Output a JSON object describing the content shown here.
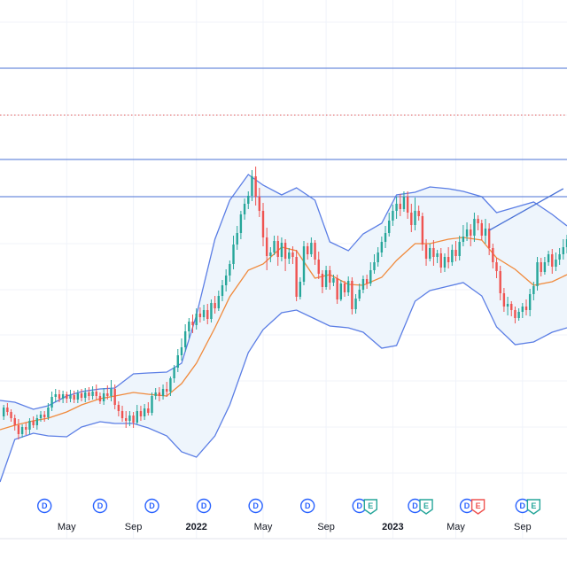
{
  "colors": {
    "up": "#26a69a",
    "down": "#ef5350",
    "band_line": "#5b7ee5",
    "band_fill": "#eef5fc",
    "basis": "#f08a3c",
    "hline": "#4a72d6",
    "hline_dotted": "#e25a5a",
    "trendline": "#4a72d6",
    "dividend": "#2962ff",
    "earnings": "#26a69a",
    "earnings_red": "#ef5350"
  },
  "chart_data": {
    "type": "candlestick",
    "title": "",
    "xlabel": "",
    "ylabel": "",
    "grid": true,
    "ylim": [
      0,
      640
    ],
    "x_ticks": [
      {
        "label": "May",
        "x": 18,
        "bold": false
      },
      {
        "label": "Sep",
        "x": 36,
        "bold": false
      },
      {
        "label": "2022",
        "x": 53,
        "bold": true
      },
      {
        "label": "May",
        "x": 71,
        "bold": false
      },
      {
        "label": "Sep",
        "x": 88,
        "bold": false
      },
      {
        "label": "2023",
        "x": 106,
        "bold": true
      },
      {
        "label": "May",
        "x": 123,
        "bold": false
      },
      {
        "label": "Sep",
        "x": 141,
        "bold": false
      }
    ],
    "horizontal_levels": [
      {
        "value": 563,
        "style": "solid"
      },
      {
        "value": 510,
        "style": "dotted"
      },
      {
        "value": 460,
        "style": "solid"
      },
      {
        "value": 418,
        "style": "solid"
      }
    ],
    "events": [
      {
        "type": "D",
        "x": 12
      },
      {
        "type": "D",
        "x": 27
      },
      {
        "type": "D",
        "x": 41
      },
      {
        "type": "D",
        "x": 55
      },
      {
        "type": "D",
        "x": 69
      },
      {
        "type": "D",
        "x": 83
      },
      {
        "type": "D",
        "x": 97
      },
      {
        "type": "E",
        "x": 100
      },
      {
        "type": "D",
        "x": 112
      },
      {
        "type": "E",
        "x": 115
      },
      {
        "type": "D",
        "x": 126
      },
      {
        "type": "E",
        "x": 129,
        "tone": "red"
      },
      {
        "type": "D",
        "x": 141
      },
      {
        "type": "E",
        "x": 144
      }
    ],
    "trendline": {
      "x": [
        132,
        152
      ],
      "y": [
        380,
        427
      ]
    },
    "bollinger": {
      "upper": [
        [
          0,
          188
        ],
        [
          4,
          186
        ],
        [
          9,
          178
        ],
        [
          13,
          182
        ],
        [
          18,
          193
        ],
        [
          22,
          198
        ],
        [
          27,
          201
        ],
        [
          31,
          202
        ],
        [
          36,
          218
        ],
        [
          40,
          219
        ],
        [
          45,
          220
        ],
        [
          49,
          230
        ],
        [
          53,
          284
        ],
        [
          58,
          370
        ],
        [
          62,
          414
        ],
        [
          67,
          443
        ],
        [
          71,
          431
        ],
        [
          76,
          420
        ],
        [
          80,
          428
        ],
        [
          85,
          414
        ],
        [
          89,
          367
        ],
        [
          94,
          357
        ],
        [
          98,
          376
        ],
        [
          103,
          388
        ],
        [
          107,
          420
        ],
        [
          112,
          423
        ],
        [
          116,
          429
        ],
        [
          121,
          427
        ],
        [
          125,
          424
        ],
        [
          130,
          418
        ],
        [
          134,
          400
        ],
        [
          139,
          406
        ],
        [
          144,
          412
        ],
        [
          149,
          398
        ],
        [
          153,
          385
        ]
      ],
      "lower": [
        [
          0,
          96
        ],
        [
          4,
          144
        ],
        [
          9,
          151
        ],
        [
          13,
          148
        ],
        [
          18,
          147
        ],
        [
          22,
          158
        ],
        [
          27,
          164
        ],
        [
          31,
          162
        ],
        [
          36,
          162
        ],
        [
          40,
          157
        ],
        [
          45,
          148
        ],
        [
          49,
          130
        ],
        [
          53,
          124
        ],
        [
          58,
          148
        ],
        [
          62,
          183
        ],
        [
          67,
          242
        ],
        [
          71,
          268
        ],
        [
          76,
          287
        ],
        [
          80,
          290
        ],
        [
          85,
          280
        ],
        [
          89,
          272
        ],
        [
          94,
          270
        ],
        [
          98,
          265
        ],
        [
          103,
          247
        ],
        [
          107,
          250
        ],
        [
          112,
          300
        ],
        [
          116,
          312
        ],
        [
          121,
          317
        ],
        [
          125,
          321
        ],
        [
          130,
          306
        ],
        [
          134,
          271
        ],
        [
          139,
          251
        ],
        [
          144,
          254
        ],
        [
          149,
          265
        ],
        [
          153,
          270
        ]
      ],
      "basis": [
        [
          0,
          155
        ],
        [
          4,
          160
        ],
        [
          9,
          165
        ],
        [
          13,
          168
        ],
        [
          18,
          175
        ],
        [
          22,
          183
        ],
        [
          27,
          190
        ],
        [
          31,
          193
        ],
        [
          36,
          197
        ],
        [
          40,
          195
        ],
        [
          45,
          193
        ],
        [
          49,
          207
        ],
        [
          53,
          230
        ],
        [
          58,
          270
        ],
        [
          62,
          305
        ],
        [
          67,
          335
        ],
        [
          71,
          342
        ],
        [
          76,
          361
        ],
        [
          80,
          357
        ],
        [
          85,
          326
        ],
        [
          89,
          330
        ],
        [
          94,
          319
        ],
        [
          98,
          318
        ],
        [
          103,
          327
        ],
        [
          107,
          346
        ],
        [
          112,
          365
        ],
        [
          116,
          365
        ],
        [
          121,
          370
        ],
        [
          125,
          372
        ],
        [
          130,
          369
        ],
        [
          134,
          349
        ],
        [
          139,
          336
        ],
        [
          144,
          318
        ],
        [
          149,
          322
        ],
        [
          153,
          330
        ]
      ]
    },
    "candles": [
      [
        1,
        170,
        180,
        166,
        183
      ],
      [
        2,
        180,
        175,
        171,
        185
      ],
      [
        3,
        175,
        168,
        164,
        178
      ],
      [
        4,
        168,
        160,
        154,
        172
      ],
      [
        5,
        160,
        150,
        144,
        167
      ],
      [
        6,
        150,
        158,
        146,
        161
      ],
      [
        7,
        158,
        155,
        149,
        163
      ],
      [
        8,
        155,
        165,
        150,
        168
      ],
      [
        9,
        165,
        160,
        157,
        170
      ],
      [
        10,
        160,
        168,
        155,
        172
      ],
      [
        11,
        168,
        172,
        164,
        176
      ],
      [
        12,
        172,
        169,
        164,
        176
      ],
      [
        13,
        169,
        180,
        166,
        185
      ],
      [
        14,
        180,
        192,
        176,
        198
      ],
      [
        15,
        192,
        195,
        186,
        201
      ],
      [
        16,
        195,
        190,
        186,
        200
      ],
      [
        17,
        190,
        195,
        185,
        199
      ],
      [
        18,
        195,
        190,
        185,
        198
      ],
      [
        19,
        190,
        194,
        186,
        200
      ],
      [
        20,
        194,
        189,
        185,
        199
      ],
      [
        21,
        189,
        196,
        185,
        200
      ],
      [
        22,
        196,
        191,
        187,
        201
      ],
      [
        23,
        191,
        197,
        186,
        202
      ],
      [
        24,
        197,
        193,
        188,
        203
      ],
      [
        25,
        193,
        198,
        189,
        204
      ],
      [
        26,
        198,
        193,
        189,
        206
      ],
      [
        27,
        193,
        187,
        184,
        197
      ],
      [
        28,
        187,
        196,
        183,
        202
      ],
      [
        29,
        196,
        193,
        189,
        205
      ],
      [
        30,
        193,
        201,
        187,
        211
      ],
      [
        31,
        201,
        183,
        178,
        206
      ],
      [
        32,
        183,
        176,
        170,
        187
      ],
      [
        33,
        176,
        168,
        164,
        182
      ],
      [
        34,
        168,
        165,
        157,
        176
      ],
      [
        35,
        165,
        171,
        159,
        176
      ],
      [
        36,
        171,
        163,
        157,
        175
      ],
      [
        37,
        163,
        176,
        161,
        183
      ],
      [
        38,
        176,
        170,
        165,
        182
      ],
      [
        39,
        170,
        179,
        166,
        184
      ],
      [
        40,
        179,
        174,
        171,
        186
      ],
      [
        41,
        174,
        193,
        171,
        197
      ],
      [
        42,
        193,
        197,
        189,
        202
      ],
      [
        43,
        197,
        193,
        187,
        203
      ],
      [
        44,
        193,
        201,
        189,
        206
      ],
      [
        45,
        201,
        198,
        192,
        209
      ],
      [
        46,
        198,
        213,
        193,
        215
      ],
      [
        47,
        213,
        225,
        208,
        228
      ],
      [
        48,
        225,
        239,
        220,
        246
      ],
      [
        49,
        239,
        248,
        233,
        258
      ],
      [
        50,
        248,
        266,
        243,
        274
      ],
      [
        51,
        266,
        277,
        258,
        281
      ],
      [
        52,
        277,
        273,
        264,
        285
      ],
      [
        53,
        273,
        286,
        268,
        292
      ],
      [
        54,
        286,
        282,
        276,
        293
      ],
      [
        55,
        282,
        290,
        278,
        296
      ],
      [
        56,
        290,
        280,
        274,
        297
      ],
      [
        57,
        280,
        298,
        276,
        302
      ],
      [
        58,
        298,
        292,
        286,
        306
      ],
      [
        59,
        292,
        306,
        289,
        312
      ],
      [
        60,
        306,
        318,
        300,
        324
      ],
      [
        61,
        318,
        329,
        311,
        336
      ],
      [
        62,
        329,
        342,
        322,
        346
      ],
      [
        63,
        342,
        364,
        336,
        374
      ],
      [
        64,
        364,
        377,
        358,
        385
      ],
      [
        65,
        377,
        398,
        370,
        402
      ],
      [
        66,
        398,
        410,
        392,
        416
      ],
      [
        67,
        410,
        419,
        404,
        424
      ],
      [
        68,
        419,
        441,
        413,
        448
      ],
      [
        69,
        441,
        418,
        408,
        452
      ],
      [
        70,
        418,
        402,
        395,
        428
      ],
      [
        71,
        402,
        372,
        362,
        411
      ],
      [
        72,
        372,
        351,
        335,
        383
      ],
      [
        73,
        351,
        355,
        344,
        361
      ],
      [
        74,
        355,
        368,
        352,
        374
      ],
      [
        75,
        368,
        350,
        340,
        374
      ],
      [
        76,
        350,
        366,
        345,
        372
      ],
      [
        77,
        366,
        348,
        334,
        370
      ],
      [
        78,
        348,
        355,
        342,
        360
      ],
      [
        79,
        355,
        350,
        342,
        362
      ],
      [
        80,
        350,
        305,
        300,
        358
      ],
      [
        81,
        305,
        322,
        302,
        327
      ],
      [
        82,
        322,
        362,
        318,
        368
      ],
      [
        83,
        362,
        353,
        347,
        366
      ],
      [
        84,
        353,
        366,
        350,
        372
      ],
      [
        85,
        366,
        347,
        341,
        369
      ],
      [
        86,
        347,
        331,
        325,
        356
      ],
      [
        87,
        331,
        316,
        309,
        335
      ],
      [
        88,
        316,
        335,
        313,
        340
      ],
      [
        89,
        335,
        321,
        313,
        340
      ],
      [
        90,
        321,
        326,
        317,
        330
      ],
      [
        91,
        326,
        302,
        297,
        330
      ],
      [
        92,
        302,
        320,
        300,
        324
      ],
      [
        93,
        320,
        310,
        305,
        323
      ],
      [
        94,
        310,
        323,
        306,
        328
      ],
      [
        95,
        323,
        291,
        285,
        327
      ],
      [
        96,
        291,
        303,
        286,
        308
      ],
      [
        97,
        303,
        313,
        300,
        320
      ],
      [
        98,
        313,
        325,
        309,
        329
      ],
      [
        99,
        325,
        320,
        314,
        330
      ],
      [
        100,
        320,
        335,
        317,
        344
      ],
      [
        101,
        335,
        344,
        331,
        353
      ],
      [
        102,
        344,
        355,
        339,
        361
      ],
      [
        103,
        355,
        367,
        350,
        373
      ],
      [
        104,
        367,
        377,
        360,
        385
      ],
      [
        105,
        377,
        391,
        373,
        400
      ],
      [
        106,
        391,
        402,
        385,
        409
      ],
      [
        107,
        402,
        410,
        393,
        418
      ],
      [
        108,
        410,
        404,
        396,
        421
      ],
      [
        109,
        404,
        418,
        401,
        424
      ],
      [
        110,
        418,
        400,
        393,
        424
      ],
      [
        111,
        400,
        386,
        378,
        410
      ],
      [
        112,
        386,
        402,
        380,
        417
      ],
      [
        113,
        402,
        396,
        391,
        408
      ],
      [
        114,
        396,
        364,
        357,
        400
      ],
      [
        115,
        364,
        348,
        340,
        370
      ],
      [
        116,
        348,
        360,
        345,
        365
      ],
      [
        117,
        360,
        350,
        340,
        369
      ],
      [
        118,
        350,
        354,
        343,
        358
      ],
      [
        119,
        354,
        338,
        332,
        360
      ],
      [
        120,
        338,
        350,
        333,
        354
      ],
      [
        121,
        350,
        344,
        337,
        361
      ],
      [
        122,
        344,
        358,
        340,
        364
      ],
      [
        123,
        358,
        351,
        345,
        368
      ],
      [
        124,
        351,
        367,
        346,
        374
      ],
      [
        125,
        367,
        373,
        362,
        386
      ],
      [
        126,
        373,
        381,
        368,
        389
      ],
      [
        127,
        381,
        374,
        362,
        387
      ],
      [
        128,
        374,
        393,
        367,
        400
      ],
      [
        129,
        393,
        388,
        380,
        397
      ],
      [
        130,
        388,
        374,
        369,
        392
      ],
      [
        131,
        374,
        382,
        365,
        393
      ],
      [
        132,
        382,
        360,
        352,
        388
      ],
      [
        133,
        360,
        344,
        337,
        365
      ],
      [
        134,
        344,
        334,
        326,
        349
      ],
      [
        135,
        334,
        309,
        301,
        340
      ],
      [
        136,
        309,
        294,
        288,
        315
      ],
      [
        137,
        294,
        297,
        284,
        305
      ],
      [
        138,
        297,
        290,
        283,
        300
      ],
      [
        139,
        290,
        281,
        275,
        294
      ],
      [
        140,
        281,
        288,
        278,
        292
      ],
      [
        141,
        288,
        294,
        281,
        298
      ],
      [
        142,
        294,
        290,
        284,
        302
      ],
      [
        143,
        290,
        308,
        283,
        314
      ],
      [
        144,
        308,
        317,
        301,
        322
      ],
      [
        145,
        317,
        344,
        312,
        350
      ],
      [
        146,
        344,
        333,
        328,
        349
      ],
      [
        147,
        333,
        344,
        330,
        350
      ],
      [
        148,
        344,
        353,
        340,
        357
      ],
      [
        149,
        353,
        339,
        331,
        359
      ],
      [
        150,
        339,
        347,
        334,
        355
      ],
      [
        151,
        347,
        353,
        341,
        360
      ],
      [
        152,
        353,
        361,
        347,
        370
      ],
      [
        153,
        361,
        370,
        354,
        375
      ]
    ]
  }
}
